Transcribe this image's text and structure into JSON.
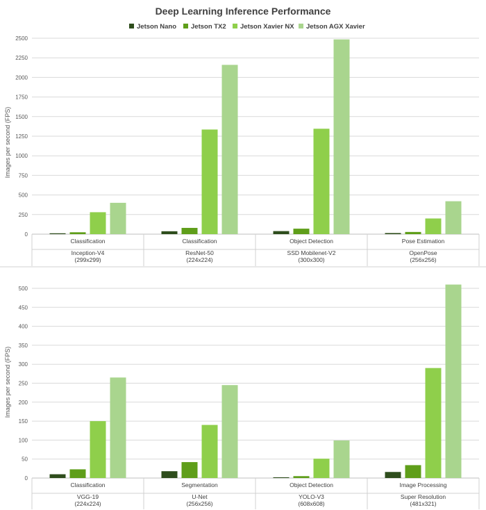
{
  "title": "Deep Learning Inference Performance",
  "legend": [
    {
      "name": "Jetson Nano",
      "color": "#2e4d1c"
    },
    {
      "name": "Jetson TX2",
      "color": "#5f9e1a"
    },
    {
      "name": "Jetson Xavier NX",
      "color": "#8fcf4b"
    },
    {
      "name": "Jetson AGX Xavier",
      "color": "#a9d58e"
    }
  ],
  "chart_data": [
    {
      "type": "bar",
      "ylabel": "Images per second (FPS)",
      "ylim": [
        0,
        2500
      ],
      "yticks": [
        0,
        250,
        500,
        750,
        1000,
        1250,
        1500,
        1750,
        2000,
        2250,
        2500
      ],
      "groups": [
        {
          "task": "Classification",
          "model": "Inception-V4",
          "res": "(299x299)"
        },
        {
          "task": "Classification",
          "model": "ResNet-50",
          "res": "(224x224)"
        },
        {
          "task": "Object Detection",
          "model": "SSD Mobilenet-V2",
          "res": "(300x300)"
        },
        {
          "task": "Pose Estimation",
          "model": "OpenPose",
          "res": "(256x256)"
        }
      ],
      "series": [
        {
          "name": "Jetson Nano",
          "values": [
            11,
            37,
            39,
            14
          ]
        },
        {
          "name": "Jetson TX2",
          "values": [
            24,
            80,
            70,
            28
          ]
        },
        {
          "name": "Jetson Xavier NX",
          "values": [
            280,
            1335,
            1345,
            200
          ]
        },
        {
          "name": "Jetson AGX Xavier",
          "values": [
            400,
            2160,
            2485,
            420
          ]
        }
      ]
    },
    {
      "type": "bar",
      "ylabel": "Images per second (FPS)",
      "ylim": [
        0,
        500
      ],
      "yticks": [
        0,
        50,
        100,
        150,
        200,
        250,
        300,
        350,
        400,
        450,
        500
      ],
      "groups": [
        {
          "task": "Classification",
          "model": "VGG-19",
          "res": "(224x224)"
        },
        {
          "task": "Segmentation",
          "model": "U-Net",
          "res": "(256x256)"
        },
        {
          "task": "Object Detection",
          "model": "YOLO-V3",
          "res": "(608x608)"
        },
        {
          "task": "Image Processing",
          "model": "Super Resolution",
          "res": "(481x321)"
        }
      ],
      "series": [
        {
          "name": "Jetson Nano",
          "values": [
            10,
            18,
            2,
            16
          ]
        },
        {
          "name": "Jetson TX2",
          "values": [
            23,
            42,
            5,
            34
          ]
        },
        {
          "name": "Jetson Xavier NX",
          "values": [
            150,
            140,
            51,
            290
          ]
        },
        {
          "name": "Jetson AGX Xavier",
          "values": [
            265,
            245,
            99,
            510
          ]
        }
      ]
    }
  ]
}
